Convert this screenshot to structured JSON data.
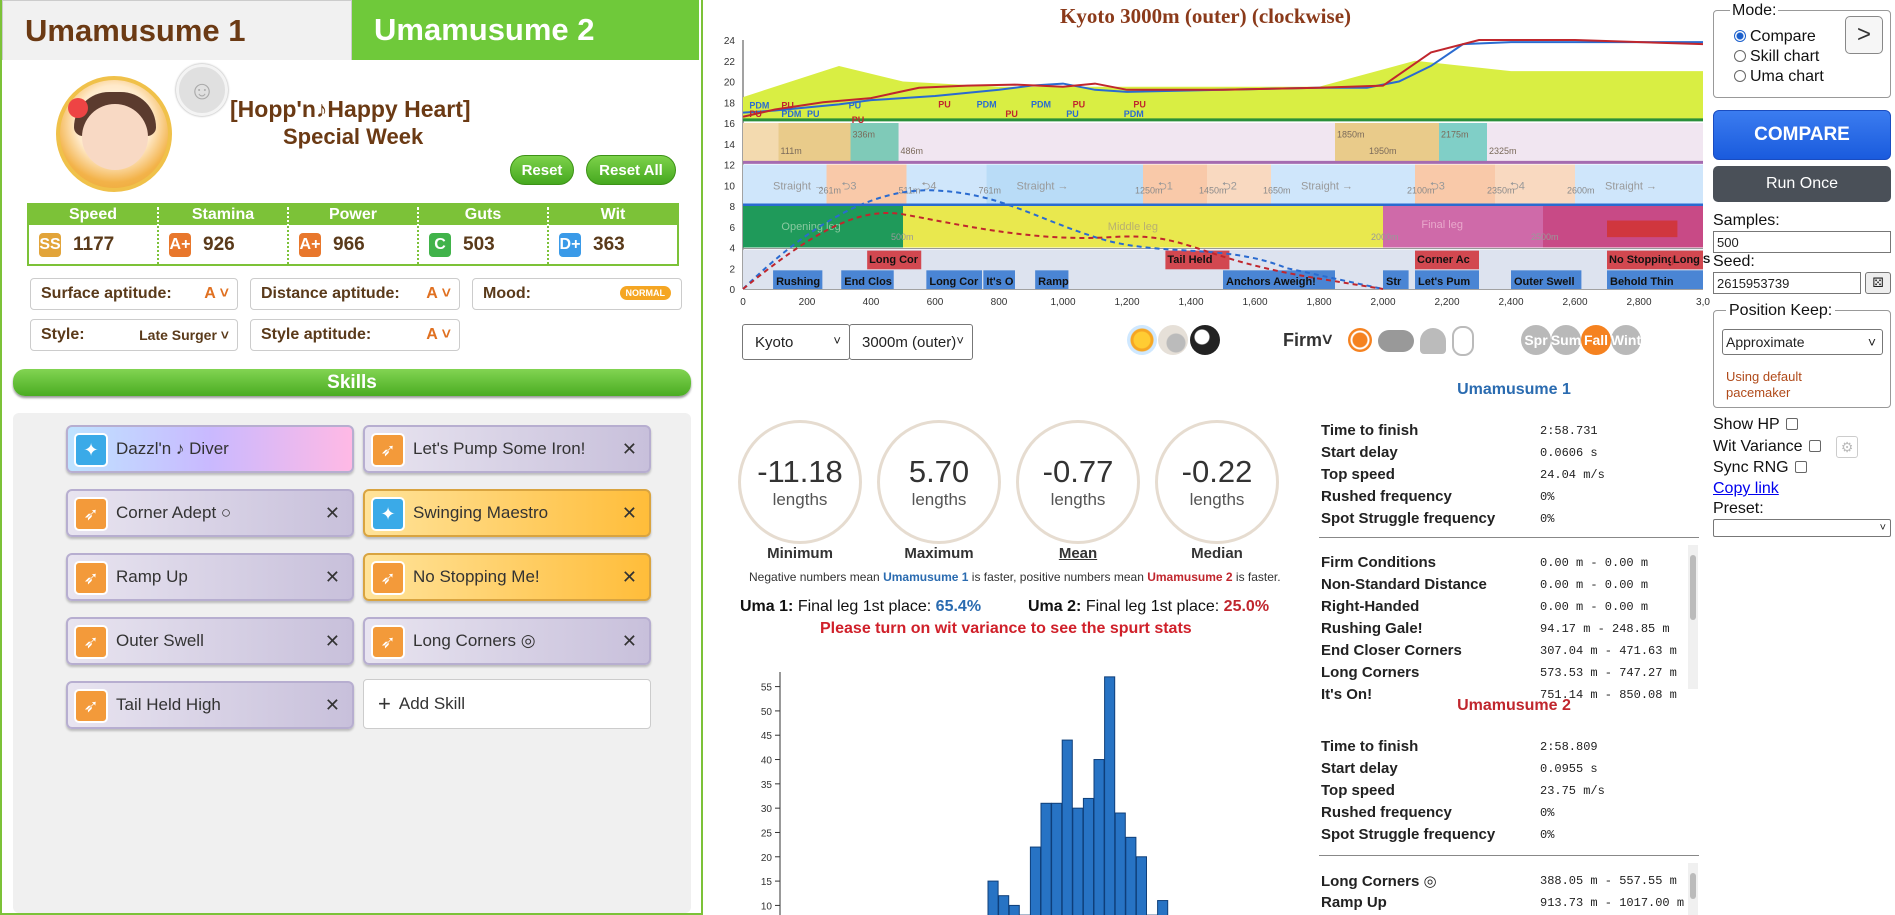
{
  "tabs": {
    "tab1": "Umamusume 1",
    "tab2": "Umamusume 2",
    "next": ">"
  },
  "character": {
    "outfit": "[Hopp'n♪Happy Heart]",
    "name": "Special Week"
  },
  "buttons": {
    "reset": "Reset",
    "reset_all": "Reset All"
  },
  "stats": {
    "headers": [
      "Speed",
      "Stamina",
      "Power",
      "Guts",
      "Wit"
    ],
    "values": [
      "1177",
      "926",
      "966",
      "503",
      "363"
    ],
    "ranks": [
      "SS",
      "A+",
      "A+",
      "C",
      "D+"
    ],
    "rank_colors": [
      "#e2a43a",
      "#e8772c",
      "#e8772c",
      "#41b34a",
      "#3a9ae8"
    ]
  },
  "aptitudes": {
    "surface_label": "Surface aptitude:",
    "surface_value": "A",
    "distance_label": "Distance aptitude:",
    "distance_value": "A",
    "mood_label": "Mood:",
    "mood_value": "NORMAL",
    "style_label": "Style:",
    "style_value": "Late Surger",
    "style_apt_label": "Style aptitude:",
    "style_apt_value": "A"
  },
  "skills_header": "Skills",
  "skills": [
    {
      "name": "Dazzl'n ♪ Diver",
      "type": "rainbow",
      "icon": "sparkle-icon"
    },
    {
      "name": "Let's Pump Some Iron!",
      "type": "normal",
      "icon": "runner-icon"
    },
    {
      "name": "Corner Adept ○",
      "type": "normal",
      "icon": "runner-icon"
    },
    {
      "name": "Swinging Maestro",
      "type": "gold",
      "icon": "sparkle-icon"
    },
    {
      "name": "Ramp Up",
      "type": "normal",
      "icon": "runner-icon"
    },
    {
      "name": "No Stopping Me!",
      "type": "gold",
      "icon": "runner-icon"
    },
    {
      "name": "Outer Swell",
      "type": "normal",
      "icon": "runner-icon"
    },
    {
      "name": "Long Corners ◎",
      "type": "normal",
      "icon": "runner-icon"
    },
    {
      "name": "Tail Held High",
      "type": "normal",
      "icon": "runner-icon"
    }
  ],
  "add_skill": "Add Skill",
  "chart": {
    "title": "Kyoto 3000m (outer) (clockwise)",
    "y_ticks": [
      "0",
      "2",
      "4",
      "6",
      "8",
      "10",
      "12",
      "14",
      "16",
      "18",
      "20",
      "22",
      "24"
    ],
    "x_ticks": [
      "0",
      "200",
      "400",
      "600",
      "800",
      "1,000",
      "1,200",
      "1,400",
      "1,600",
      "1,800",
      "2,000",
      "2,200",
      "2,400",
      "2,600",
      "2,800",
      "3,0"
    ],
    "slope_labels": [
      "111m",
      "336m",
      "486m",
      "1850m",
      "1950m",
      "2175m",
      "2325m"
    ],
    "straights": [
      "Straight →",
      "⮌3",
      "⮌4",
      "Straight →",
      "⮌1",
      "⮌2",
      "Straight →",
      "⮌3",
      "⮌4",
      "Straight →"
    ],
    "straight_dists": [
      "261m",
      "511m",
      "761m",
      "1250m",
      "1450m",
      "1650m",
      "2100m",
      "2350m",
      "2600m"
    ],
    "phases": [
      "Opening leg",
      "Middle leg",
      "Final leg"
    ],
    "phase_dists": [
      "500m",
      "2000m",
      "2500m"
    ],
    "uma1_skills": [
      "Rushing",
      "End Clos",
      "Long Cor",
      "It's O",
      "Ramp",
      "Anchors Aweigh!",
      "Str",
      "Let's Pum",
      "Outer Swell",
      "Behold Thin"
    ],
    "uma2_skills": [
      "Long Cor",
      "Tail Held",
      "Corner Ac",
      "No Stopping",
      "Long Straig"
    ],
    "pu_labels": [
      "PDM",
      "PU",
      "PDM",
      "PU",
      "PU",
      "PU",
      "PU",
      "PU",
      "PDM",
      "PU",
      "PDM",
      "PU",
      "PU",
      "PDM",
      "PU"
    ]
  },
  "track": {
    "course": "Kyoto",
    "distance": "3000m (outer)",
    "ground": "Firm"
  },
  "seasons": [
    "Spr",
    "Sum",
    "Fall",
    "Wint"
  ],
  "summary": [
    {
      "value": "-11.18",
      "unit": "lengths",
      "label": "Minimum"
    },
    {
      "value": "5.70",
      "unit": "lengths",
      "label": "Maximum"
    },
    {
      "value": "-0.77",
      "unit": "lengths",
      "label": "Mean"
    },
    {
      "value": "-0.22",
      "unit": "lengths",
      "label": "Median"
    }
  ],
  "note": {
    "prefix": "Negative numbers mean ",
    "uma1": "Umamusume 1",
    "mid": " is faster, positive numbers mean ",
    "uma2": "Umamusume 2",
    "suffix": " is faster."
  },
  "final_leg": {
    "uma1_label": "Uma 1:",
    "uma1_text": "Final leg 1st place:",
    "uma1_value": "65.4%",
    "uma2_label": "Uma 2:",
    "uma2_text": "Final leg 1st place:",
    "uma2_value": "25.0%"
  },
  "wit_warning": "Please turn on wit variance to see the spurt stats",
  "histogram": {
    "y_ticks": [
      "10",
      "15",
      "20",
      "25",
      "30",
      "35",
      "40",
      "45",
      "50",
      "55"
    ],
    "bars": [
      15,
      12,
      10,
      8,
      22,
      31,
      31,
      44,
      30,
      32,
      40,
      57,
      29,
      24,
      20,
      8,
      11
    ]
  },
  "results": {
    "uma1": {
      "title": "Umamusume 1",
      "rows": [
        {
          "label": "Time to finish",
          "value": "2:58.731"
        },
        {
          "label": "Start delay",
          "value": "0.0606 s"
        },
        {
          "label": "Top speed",
          "value": "24.04 m/s"
        },
        {
          "label": "Rushed frequency",
          "value": "0%"
        },
        {
          "label": "Spot Struggle frequency",
          "value": "0%"
        }
      ],
      "skills": [
        {
          "label": "Firm Conditions",
          "value": "0.00 m - 0.00 m"
        },
        {
          "label": "Non-Standard Distance",
          "value": "0.00 m - 0.00 m"
        },
        {
          "label": "Right-Handed",
          "value": "0.00 m - 0.00 m"
        },
        {
          "label": "Rushing Gale!",
          "value": "94.17 m - 248.85 m"
        },
        {
          "label": "End Closer Corners",
          "value": "307.04 m - 471.63 m"
        },
        {
          "label": "Long Corners",
          "value": "573.53 m - 747.27 m"
        },
        {
          "label": "It's On!",
          "value": "751.14 m - 850.08 m"
        }
      ]
    },
    "uma2": {
      "title": "Umamusume 2",
      "rows": [
        {
          "label": "Time to finish",
          "value": "2:58.809"
        },
        {
          "label": "Start delay",
          "value": "0.0955 s"
        },
        {
          "label": "Top speed",
          "value": "23.75 m/s"
        },
        {
          "label": "Rushed frequency",
          "value": "0%"
        },
        {
          "label": "Spot Struggle frequency",
          "value": "0%"
        }
      ],
      "skills": [
        {
          "label": "Long Corners ◎",
          "value": "388.05 m - 557.55 m"
        },
        {
          "label": "Ramp Up",
          "value": "913.73 m - 1017.00 m"
        }
      ]
    }
  },
  "controls": {
    "mode_legend": "Mode:",
    "modes": [
      "Compare",
      "Skill chart",
      "Uma chart"
    ],
    "compare_btn": "COMPARE",
    "run_once": "Run Once",
    "samples_label": "Samples:",
    "samples_value": "500",
    "seed_label": "Seed:",
    "seed_value": "2615953739",
    "position_keep_legend": "Position Keep:",
    "position_keep_value": "Approximate",
    "pacemaker_note": "Using default pacemaker",
    "show_hp": "Show HP",
    "wit_variance": "Wit Variance",
    "sync_rng": "Sync RNG",
    "copy_link": "Copy link",
    "preset_label": "Preset:"
  },
  "colors": {
    "uma1": "#2a6bb0",
    "uma2": "#c0262d",
    "accent_green": "#7cc238",
    "compare_blue": "#1a5bdd"
  }
}
